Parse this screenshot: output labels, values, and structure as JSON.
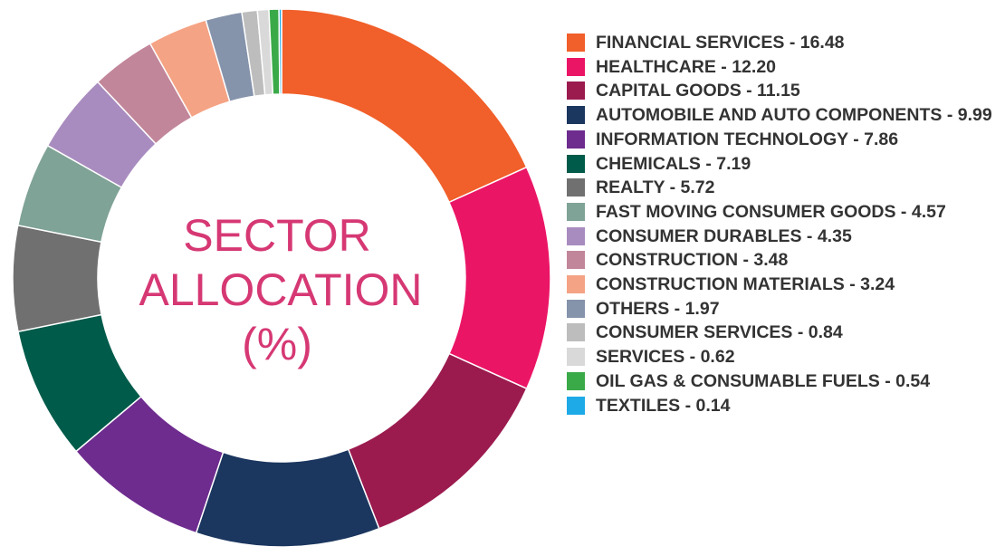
{
  "chart_data": {
    "type": "pie",
    "title_lines": [
      "SECTOR",
      "ALLOCATION",
      "(%)"
    ],
    "slices": [
      {
        "label": "FINANCIAL SERVICES - 16.48",
        "value": 16.48,
        "color": "#f15f2a"
      },
      {
        "label": "HEALTHCARE - 12.20",
        "value": 12.2,
        "color": "#eb1566"
      },
      {
        "label": "CAPITAL GOODS - 11.15",
        "value": 11.15,
        "color": "#9b1b4f"
      },
      {
        "label": "AUTOMOBILE AND AUTO COMPONENTS - 9.99",
        "value": 9.99,
        "color": "#1b365f"
      },
      {
        "label": "INFORMATION TECHNOLOGY - 7.86",
        "value": 7.86,
        "color": "#6e2c8f"
      },
      {
        "label": "CHEMICALS - 7.19",
        "value": 7.19,
        "color": "#005b4a"
      },
      {
        "label": "REALTY - 5.72",
        "value": 5.72,
        "color": "#707070"
      },
      {
        "label": "FAST MOVING CONSUMER GOODS - 4.57",
        "value": 4.57,
        "color": "#7fa396"
      },
      {
        "label": "CONSUMER DURABLES - 4.35",
        "value": 4.35,
        "color": "#a98cbf"
      },
      {
        "label": "CONSTRUCTION - 3.48",
        "value": 3.48,
        "color": "#c2869a"
      },
      {
        "label": "CONSTRUCTION MATERIALS - 3.24",
        "value": 3.24,
        "color": "#f5a385"
      },
      {
        "label": "OTHERS - 1.97",
        "value": 1.97,
        "color": "#8593ab"
      },
      {
        "label": "CONSUMER SERVICES - 0.84",
        "value": 0.84,
        "color": "#bdbdbd"
      },
      {
        "label": "SERVICES - 0.62",
        "value": 0.62,
        "color": "#d9d9d9"
      },
      {
        "label": "OIL GAS & CONSUMABLE FUELS - 0.54",
        "value": 0.54,
        "color": "#3aaa48"
      },
      {
        "label": "TEXTILES - 0.14",
        "value": 0.14,
        "color": "#1eaae7"
      }
    ]
  },
  "legend": {
    "items": [
      "FINANCIAL SERVICES - 16.48",
      "HEALTHCARE - 12.20",
      "CAPITAL GOODS - 11.15",
      "AUTOMOBILE AND AUTO COMPONENTS - 9.99",
      "INFORMATION TECHNOLOGY - 7.86",
      "CHEMICALS - 7.19",
      "REALTY - 5.72",
      "FAST MOVING CONSUMER GOODS - 4.57",
      "CONSUMER DURABLES - 4.35",
      "CONSTRUCTION - 3.48",
      "CONSTRUCTION MATERIALS - 3.24",
      "OTHERS - 1.97",
      "CONSUMER SERVICES - 0.84",
      "SERVICES - 0.62",
      "OIL GAS & CONSUMABLE FUELS - 0.54",
      "TEXTILES - 0.14"
    ]
  }
}
